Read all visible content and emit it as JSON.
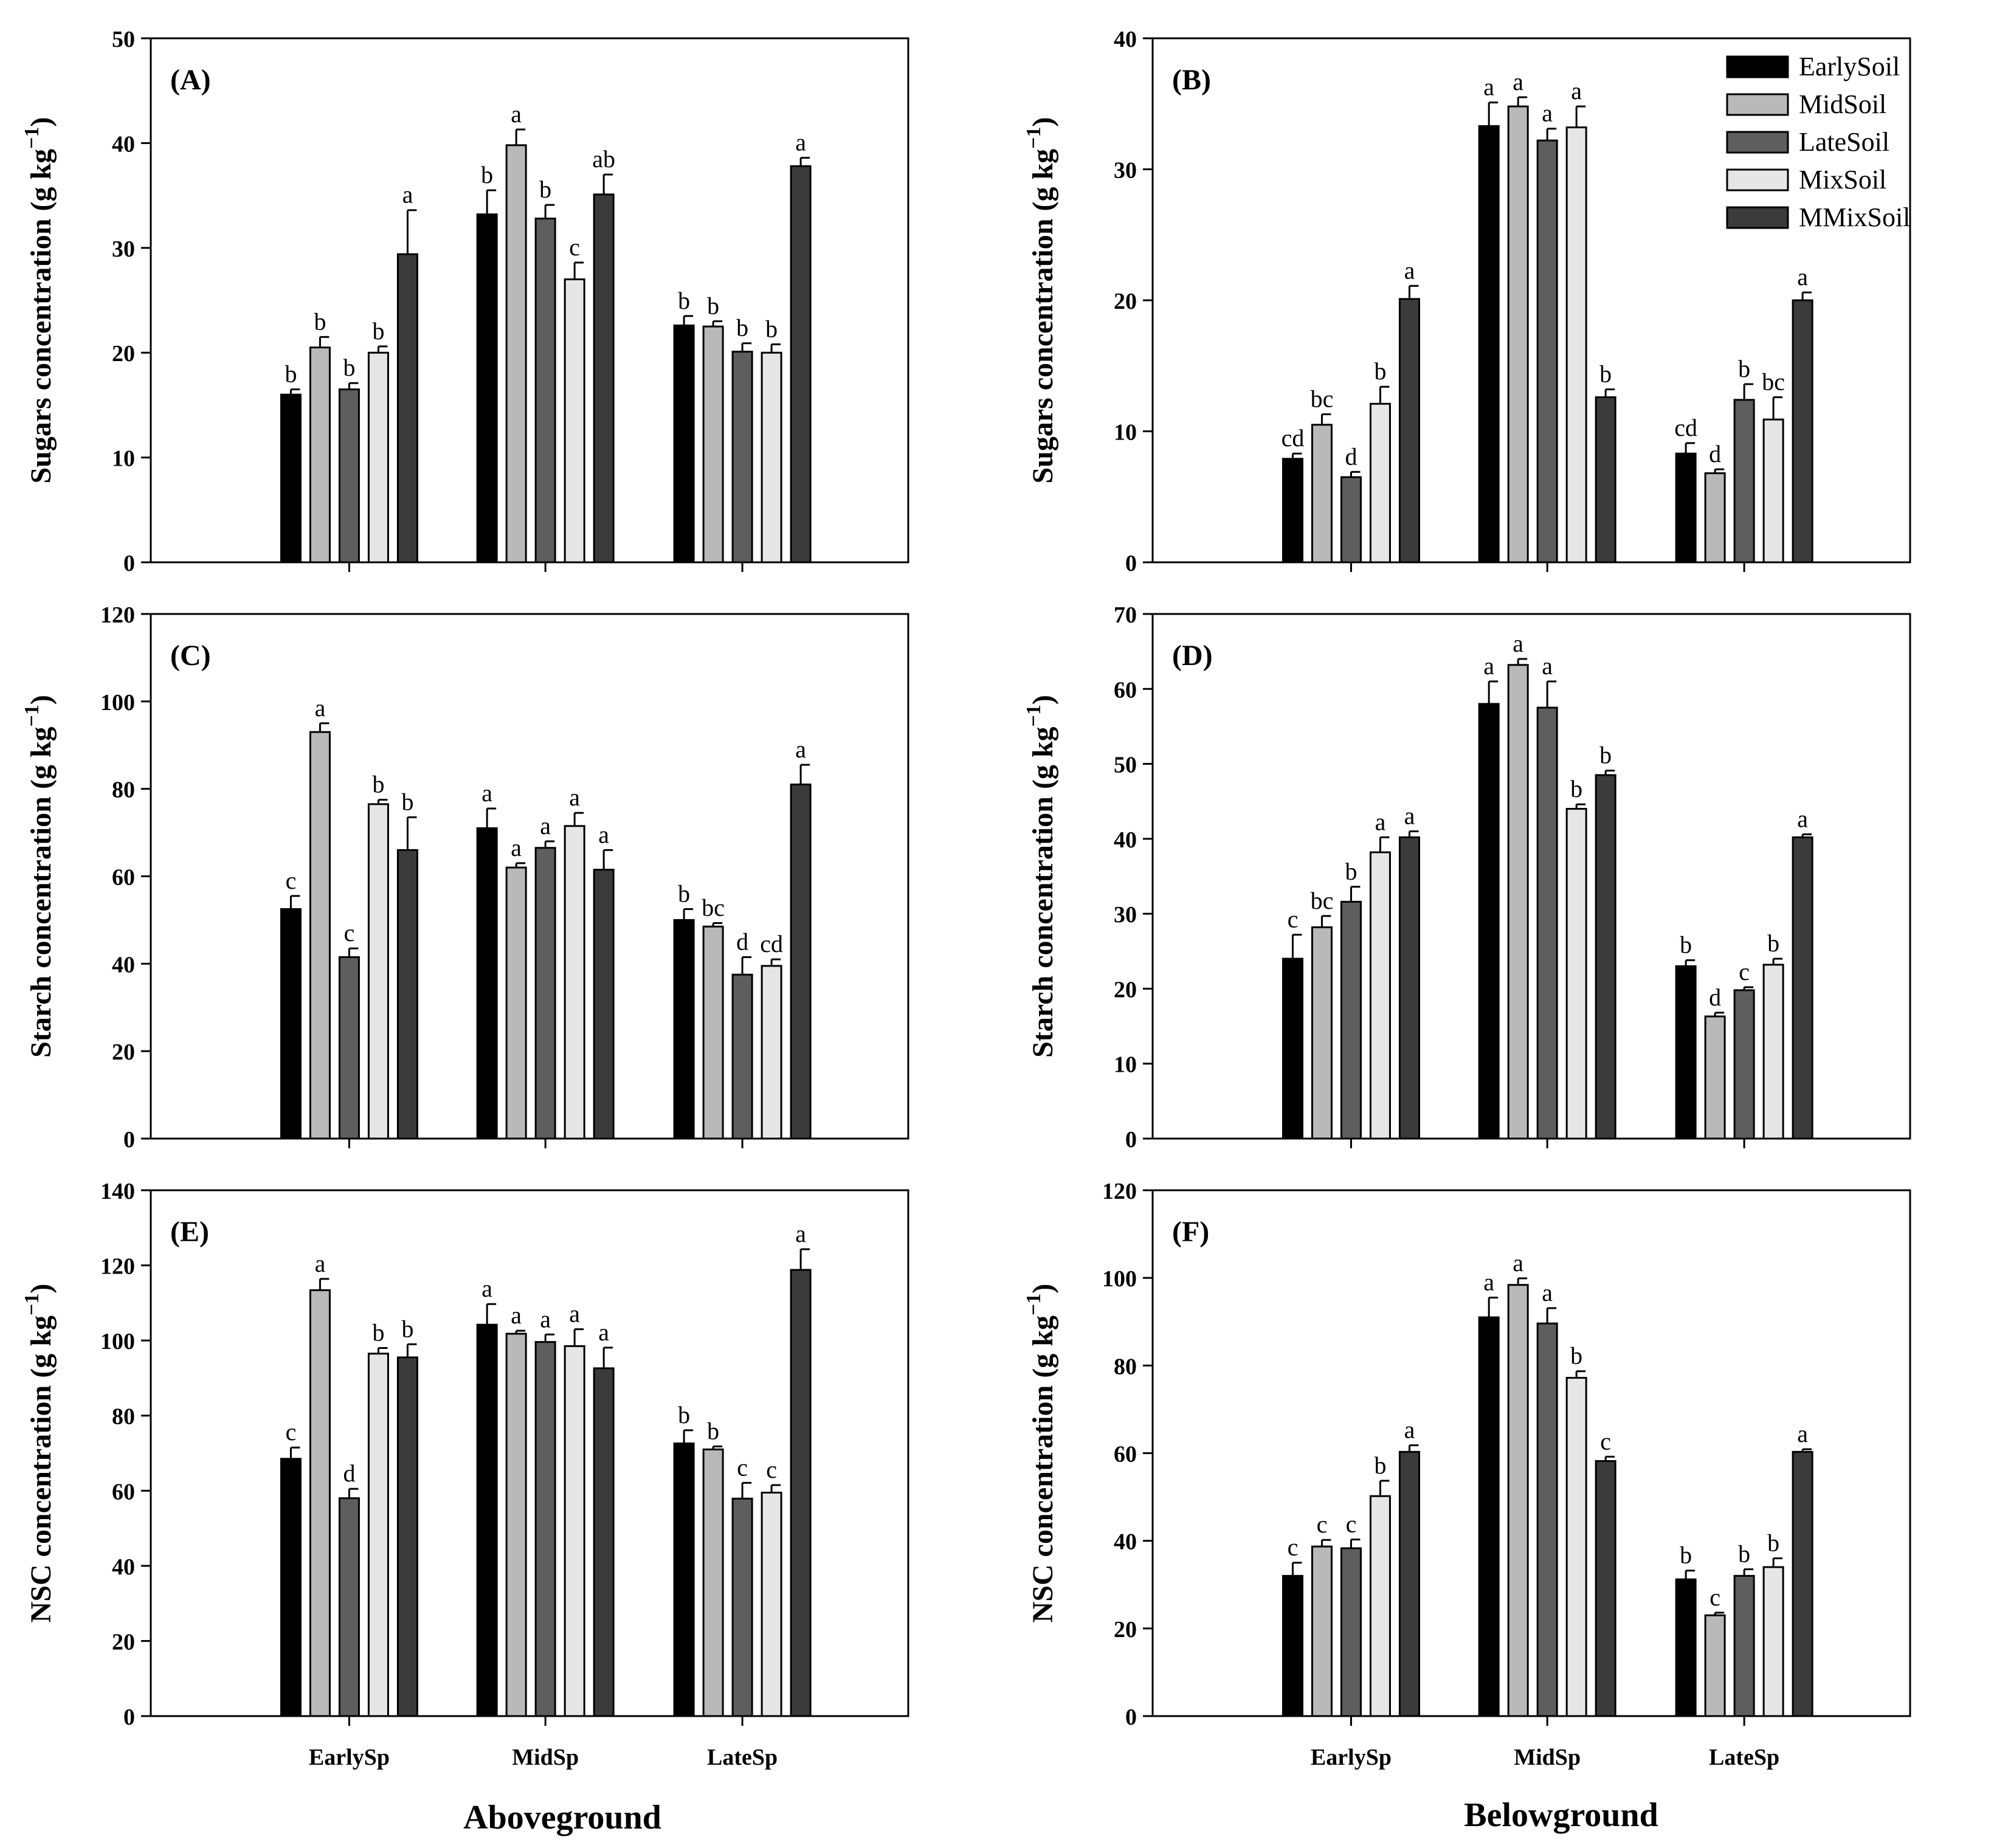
{
  "colors": {
    "EarlySoil": "#000000",
    "MidSoil": "#b9b9b9",
    "LateSoil": "#5e5e5e",
    "MixSoil": "#e6e6e6",
    "MMixSoil": "#3b3b3b"
  },
  "column_titles": {
    "left": "Aboveground",
    "right": "Belowground"
  },
  "chart_data": [
    {
      "id": "A",
      "panel_label": "(A)",
      "type": "bar",
      "column": "left",
      "row": 0,
      "ylabel_main": "Sugars concentration (g kg",
      "ylabel_sup": "−1",
      "ylabel_end": ")",
      "ylim": [
        0,
        50
      ],
      "yticks": [
        0,
        10,
        20,
        30,
        40,
        50
      ],
      "categories": [
        "EarlySp",
        "MidSp",
        "LateSp"
      ],
      "show_xticklabels": false,
      "show_legend": false,
      "series": [
        {
          "name": "EarlySoil",
          "values": [
            16.0,
            33.2,
            22.6
          ],
          "errors": [
            0.5,
            2.3,
            0.9
          ],
          "letters": [
            "b",
            "b",
            "b"
          ]
        },
        {
          "name": "MidSoil",
          "values": [
            20.5,
            39.8,
            22.5
          ],
          "errors": [
            1.0,
            1.5,
            0.5
          ],
          "letters": [
            "b",
            "a",
            "b"
          ]
        },
        {
          "name": "LateSoil",
          "values": [
            16.5,
            32.8,
            20.1
          ],
          "errors": [
            0.6,
            1.3,
            0.8
          ],
          "letters": [
            "b",
            "b",
            "b"
          ]
        },
        {
          "name": "MixSoil",
          "values": [
            20.0,
            27.0,
            20.0
          ],
          "errors": [
            0.6,
            1.6,
            0.8
          ],
          "letters": [
            "b",
            "c",
            "b"
          ]
        },
        {
          "name": "MMixSoil",
          "values": [
            29.4,
            35.1,
            37.8
          ],
          "errors": [
            4.2,
            1.9,
            0.8
          ],
          "letters": [
            "a",
            "ab",
            "a"
          ]
        }
      ]
    },
    {
      "id": "B",
      "panel_label": "(B)",
      "type": "bar",
      "column": "right",
      "row": 0,
      "ylabel_main": "Sugars concentration (g kg",
      "ylabel_sup": "−1",
      "ylabel_end": ")",
      "ylim": [
        0,
        40
      ],
      "yticks": [
        0,
        10,
        20,
        30,
        40
      ],
      "categories": [
        "EarlySp",
        "MidSp",
        "LateSp"
      ],
      "show_xticklabels": false,
      "show_legend": true,
      "legend_position": "top-right",
      "series": [
        {
          "name": "EarlySoil",
          "values": [
            7.9,
            33.3,
            8.3
          ],
          "errors": [
            0.4,
            1.8,
            0.8
          ],
          "letters": [
            "cd",
            "a",
            "cd"
          ]
        },
        {
          "name": "MidSoil",
          "values": [
            10.5,
            34.8,
            6.8
          ],
          "errors": [
            0.8,
            0.7,
            0.3
          ],
          "letters": [
            "bc",
            "a",
            "d"
          ]
        },
        {
          "name": "LateSoil",
          "values": [
            6.5,
            32.2,
            12.4
          ],
          "errors": [
            0.4,
            0.9,
            1.2
          ],
          "letters": [
            "d",
            "a",
            "b"
          ]
        },
        {
          "name": "MixSoil",
          "values": [
            12.1,
            33.2,
            10.9
          ],
          "errors": [
            1.3,
            1.6,
            1.7
          ],
          "letters": [
            "b",
            "a",
            "bc"
          ]
        },
        {
          "name": "MMixSoil",
          "values": [
            20.1,
            12.6,
            20.0
          ],
          "errors": [
            1.0,
            0.6,
            0.6
          ],
          "letters": [
            "a",
            "b",
            "a"
          ]
        }
      ]
    },
    {
      "id": "C",
      "panel_label": "(C)",
      "type": "bar",
      "column": "left",
      "row": 1,
      "ylabel_main": "Starch concentration (g kg",
      "ylabel_sup": "−1",
      "ylabel_end": ")",
      "ylim": [
        0,
        120
      ],
      "yticks": [
        0,
        20,
        40,
        60,
        80,
        100,
        120
      ],
      "categories": [
        "EarlySp",
        "MidSp",
        "LateSp"
      ],
      "show_xticklabels": false,
      "show_legend": false,
      "series": [
        {
          "name": "EarlySoil",
          "values": [
            52.5,
            71.0,
            50.0
          ],
          "errors": [
            3.0,
            4.5,
            2.5
          ],
          "letters": [
            "c",
            "a",
            "b"
          ]
        },
        {
          "name": "MidSoil",
          "values": [
            93.0,
            62.0,
            48.5
          ],
          "errors": [
            2.0,
            1.0,
            0.8
          ],
          "letters": [
            "a",
            "a",
            "bc"
          ]
        },
        {
          "name": "LateSoil",
          "values": [
            41.5,
            66.5,
            37.5
          ],
          "errors": [
            2.0,
            1.5,
            4.0
          ],
          "letters": [
            "c",
            "a",
            "d"
          ]
        },
        {
          "name": "MixSoil",
          "values": [
            76.5,
            71.5,
            39.5
          ],
          "errors": [
            1.0,
            3.0,
            1.5
          ],
          "letters": [
            "b",
            "a",
            "cd"
          ]
        },
        {
          "name": "MMixSoil",
          "values": [
            66.0,
            61.5,
            81.0
          ],
          "errors": [
            7.5,
            4.5,
            4.5
          ],
          "letters": [
            "b",
            "a",
            "a"
          ]
        }
      ]
    },
    {
      "id": "D",
      "panel_label": "(D)",
      "type": "bar",
      "column": "right",
      "row": 1,
      "ylabel_main": "Starch concentration (g kg",
      "ylabel_sup": "−1",
      "ylabel_end": ")",
      "ylim": [
        0,
        70
      ],
      "yticks": [
        0,
        10,
        20,
        30,
        40,
        50,
        60,
        70
      ],
      "categories": [
        "EarlySp",
        "MidSp",
        "LateSp"
      ],
      "show_xticklabels": false,
      "show_legend": false,
      "series": [
        {
          "name": "EarlySoil",
          "values": [
            24.0,
            58.0,
            23.0
          ],
          "errors": [
            3.2,
            3.0,
            0.8
          ],
          "letters": [
            "c",
            "a",
            "b"
          ]
        },
        {
          "name": "MidSoil",
          "values": [
            28.2,
            63.2,
            16.3
          ],
          "errors": [
            1.5,
            0.8,
            0.5
          ],
          "letters": [
            "bc",
            "a",
            "d"
          ]
        },
        {
          "name": "LateSoil",
          "values": [
            31.6,
            57.5,
            19.8
          ],
          "errors": [
            2.0,
            3.5,
            0.4
          ],
          "letters": [
            "b",
            "a",
            "c"
          ]
        },
        {
          "name": "MixSoil",
          "values": [
            38.2,
            44.0,
            23.2
          ],
          "errors": [
            2.0,
            0.6,
            0.8
          ],
          "letters": [
            "a",
            "b",
            "b"
          ]
        },
        {
          "name": "MMixSoil",
          "values": [
            40.2,
            48.5,
            40.2
          ],
          "errors": [
            0.8,
            0.6,
            0.4
          ],
          "letters": [
            "a",
            "b",
            "a"
          ]
        }
      ]
    },
    {
      "id": "E",
      "panel_label": "(E)",
      "type": "bar",
      "column": "left",
      "row": 2,
      "ylabel_main": "NSC concentration (g kg",
      "ylabel_sup": "−1",
      "ylabel_end": ")",
      "ylim": [
        0,
        140
      ],
      "yticks": [
        0,
        20,
        40,
        60,
        80,
        100,
        120,
        140
      ],
      "categories": [
        "EarlySp",
        "MidSp",
        "LateSp"
      ],
      "show_xticklabels": true,
      "show_legend": false,
      "series": [
        {
          "name": "EarlySoil",
          "values": [
            68.5,
            104.2,
            72.6
          ],
          "errors": [
            3.0,
            5.5,
            3.5
          ],
          "letters": [
            "c",
            "a",
            "b"
          ]
        },
        {
          "name": "MidSoil",
          "values": [
            113.4,
            101.8,
            71.0
          ],
          "errors": [
            3.0,
            0.8,
            0.8
          ],
          "letters": [
            "a",
            "a",
            "b"
          ]
        },
        {
          "name": "LateSoil",
          "values": [
            58.0,
            99.6,
            57.9
          ],
          "errors": [
            2.5,
            2.0,
            4.2
          ],
          "letters": [
            "d",
            "a",
            "c"
          ]
        },
        {
          "name": "MixSoil",
          "values": [
            96.5,
            98.5,
            59.5
          ],
          "errors": [
            1.5,
            4.5,
            2.0
          ],
          "letters": [
            "b",
            "a",
            "c"
          ]
        },
        {
          "name": "MMixSoil",
          "values": [
            95.5,
            92.6,
            118.8
          ],
          "errors": [
            3.5,
            5.5,
            5.5
          ],
          "letters": [
            "b",
            "a",
            "a"
          ]
        }
      ]
    },
    {
      "id": "F",
      "panel_label": "(F)",
      "type": "bar",
      "column": "right",
      "row": 2,
      "ylabel_main": "NSC concentration (g kg",
      "ylabel_sup": "−1",
      "ylabel_end": ")",
      "ylim": [
        0,
        120
      ],
      "yticks": [
        0,
        20,
        40,
        60,
        80,
        100,
        120
      ],
      "categories": [
        "EarlySp",
        "MidSp",
        "LateSp"
      ],
      "show_xticklabels": true,
      "show_legend": false,
      "series": [
        {
          "name": "EarlySoil",
          "values": [
            32.0,
            91.0,
            31.2
          ],
          "errors": [
            3.0,
            4.5,
            2.0
          ],
          "letters": [
            "c",
            "a",
            "b"
          ]
        },
        {
          "name": "MidSoil",
          "values": [
            38.7,
            98.4,
            23.0
          ],
          "errors": [
            1.5,
            1.5,
            0.6
          ],
          "letters": [
            "c",
            "a",
            "c"
          ]
        },
        {
          "name": "LateSoil",
          "values": [
            38.3,
            89.6,
            32.0
          ],
          "errors": [
            2.0,
            3.5,
            1.5
          ],
          "letters": [
            "c",
            "a",
            "b"
          ]
        },
        {
          "name": "MixSoil",
          "values": [
            50.2,
            77.2,
            34.0
          ],
          "errors": [
            3.5,
            1.5,
            2.0
          ],
          "letters": [
            "b",
            "b",
            "b"
          ]
        },
        {
          "name": "MMixSoil",
          "values": [
            60.3,
            58.2,
            60.3
          ],
          "errors": [
            1.5,
            1.0,
            0.6
          ],
          "letters": [
            "a",
            "c",
            "a"
          ]
        }
      ]
    }
  ]
}
